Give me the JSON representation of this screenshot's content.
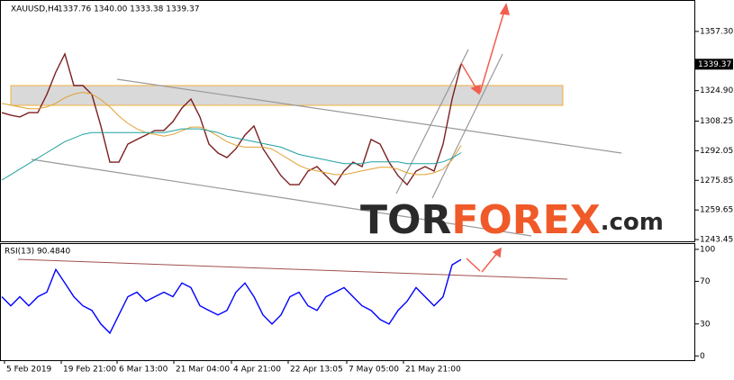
{
  "chart_data": [
    {
      "type": "line",
      "title": "XAUUSD,H4",
      "subtitle": "1337.76 1340.00 1333.38 1339.37",
      "current_price": 1339.37,
      "watermark": [
        "TOR",
        "FOREX",
        ".com"
      ],
      "x": [
        0,
        1,
        2,
        3,
        4,
        5,
        6,
        7,
        8,
        9,
        10,
        11,
        12,
        13,
        14,
        15,
        16,
        17,
        18,
        19,
        20,
        21,
        22,
        23,
        24,
        25,
        26,
        27,
        28,
        29,
        30,
        31,
        32,
        33,
        34,
        35,
        36,
        37,
        38,
        39,
        40,
        41,
        42,
        43,
        44,
        45,
        46,
        47,
        48,
        49,
        50,
        51
      ],
      "xlim": [
        0,
        77
      ],
      "ylim": [
        1242.5,
        1373.5
      ],
      "yticks": [
        {
          "value": 1357.3,
          "label": "1357.30"
        },
        {
          "value": 1324.9,
          "label": "1324.90"
        },
        1308.25,
        1292.05,
        1275.85,
        1259.65,
        1243.45
      ],
      "series": [
        {
          "name": "Price",
          "color": "#7a1f1f",
          "values": [
            1312.9,
            1311.5,
            1310.5,
            1312.9,
            1312.9,
            1322.8,
            1335.1,
            1345.0,
            1327.7,
            1327.7,
            1322.8,
            1305.6,
            1285.8,
            1285.8,
            1295.7,
            1298.2,
            1300.6,
            1303.1,
            1303.1,
            1308.0,
            1315.4,
            1320.3,
            1310.5,
            1295.7,
            1290.8,
            1288.3,
            1293.2,
            1300.6,
            1305.6,
            1293.2,
            1285.8,
            1278.4,
            1273.5,
            1273.5,
            1280.9,
            1283.4,
            1278.4,
            1273.5,
            1280.9,
            1285.8,
            1283.4,
            1298.2,
            1295.7,
            1285.8,
            1278.4,
            1273.5,
            1280.9,
            1283.4,
            1280.9,
            1295.7,
            1320.3,
            1339.37
          ]
        },
        {
          "name": "MA slow",
          "color": "#e0a030",
          "values": [
            1318,
            1317,
            1316,
            1315,
            1315,
            1316,
            1318,
            1321,
            1323,
            1324,
            1323,
            1320,
            1316,
            1311,
            1307,
            1304,
            1302,
            1301,
            1300,
            1301,
            1303,
            1305,
            1305,
            1303,
            1300,
            1297,
            1295,
            1294,
            1294,
            1294,
            1293,
            1290,
            1287,
            1284,
            1282,
            1281,
            1280,
            1279,
            1279,
            1280,
            1281,
            1282,
            1283,
            1283,
            1282,
            1280,
            1279,
            1279,
            1280,
            1282,
            1287,
            1295
          ]
        },
        {
          "name": "MA long",
          "color": "#20a0a0",
          "values": [
            1276,
            1279,
            1282,
            1285,
            1288,
            1291,
            1294,
            1297,
            1299,
            1301,
            1302,
            1302,
            1302,
            1302,
            1302,
            1302,
            1302,
            1302,
            1302,
            1303,
            1304,
            1304,
            1304,
            1303,
            1302,
            1300,
            1299,
            1298,
            1297,
            1296,
            1295,
            1294,
            1292,
            1290,
            1289,
            1288,
            1287,
            1286,
            1285,
            1285,
            1285,
            1286,
            1286,
            1286,
            1286,
            1285,
            1285,
            1285,
            1285,
            1286,
            1288,
            1291
          ]
        }
      ]
    },
    {
      "type": "line",
      "title": "RSI(13) 90.4840",
      "x": [
        0,
        1,
        2,
        3,
        4,
        5,
        6,
        7,
        8,
        9,
        10,
        11,
        12,
        13,
        14,
        15,
        16,
        17,
        18,
        19,
        20,
        21,
        22,
        23,
        24,
        25,
        26,
        27,
        28,
        29,
        30,
        31,
        32,
        33,
        34,
        35,
        36,
        37,
        38,
        39,
        40,
        41,
        42,
        43,
        44,
        45,
        46,
        47,
        48,
        49,
        50,
        51
      ],
      "xlim": [
        0,
        77
      ],
      "ylim": [
        -4,
        105
      ],
      "yticks": [
        100,
        70,
        30,
        0
      ],
      "xticks": [
        {
          "value": 0.3,
          "label": "5 Feb 2019"
        },
        {
          "value": 6.6,
          "label": "19 Feb 21:00"
        },
        {
          "value": 12.8,
          "label": "6 Mar 13:00"
        },
        {
          "value": 19.1,
          "label": "21 Mar 04:00"
        },
        {
          "value": 25.5,
          "label": "4 Apr 21:00"
        },
        {
          "value": 31.8,
          "label": "22 Apr 13:05"
        },
        {
          "value": 38.3,
          "label": "7 May 05:00"
        },
        {
          "value": 44.6,
          "label": "21 May 21:00"
        }
      ],
      "series": [
        {
          "name": "RSI",
          "color": "#0000ff",
          "values": [
            55.6,
            47,
            55.6,
            47,
            55.6,
            59.8,
            81.2,
            68.4,
            55.6,
            47,
            42.7,
            29.9,
            21.4,
            38.5,
            55.6,
            59.8,
            51.3,
            55.6,
            59.8,
            55.6,
            68.4,
            64.1,
            47,
            42.7,
            38.5,
            42.7,
            59.8,
            68.4,
            55.6,
            38.5,
            29.9,
            38.5,
            55.6,
            59.8,
            47,
            42.7,
            55.6,
            59.8,
            64.1,
            55.6,
            47,
            42.7,
            34.2,
            29.9,
            42.7,
            51.3,
            64.1,
            55.6,
            47,
            55.6,
            85.5,
            90.48
          ]
        }
      ]
    }
  ]
}
